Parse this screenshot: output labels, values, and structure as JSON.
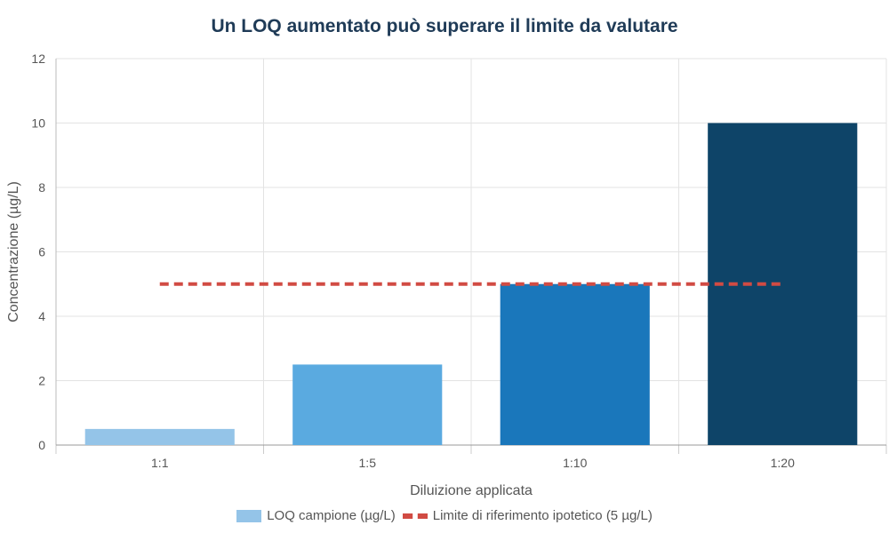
{
  "chart_data": {
    "type": "bar",
    "title": "Un LOQ aumentato può superare il limite da valutare",
    "xlabel": "Diluizione applicata",
    "ylabel": "Concentrazione (µg/L)",
    "categories": [
      "1:1",
      "1:5",
      "1:10",
      "1:20"
    ],
    "series": [
      {
        "name": "LOQ campione (µg/L)",
        "values": [
          0.5,
          2.5,
          5,
          10
        ],
        "colors": [
          "#94c4e8",
          "#5aaae0",
          "#1a77bb",
          "#0e4468"
        ]
      }
    ],
    "reference_line": {
      "name": "Limite di riferimento ipotetico (5 µg/L)",
      "value": 5,
      "color": "#d14b43",
      "style": "dashed",
      "from_category": "1:1",
      "to_category": "1:20"
    },
    "ylim": [
      0,
      12
    ],
    "yticks": [
      0,
      2,
      4,
      6,
      8,
      10,
      12
    ],
    "grid": true,
    "legend_position": "bottom"
  }
}
